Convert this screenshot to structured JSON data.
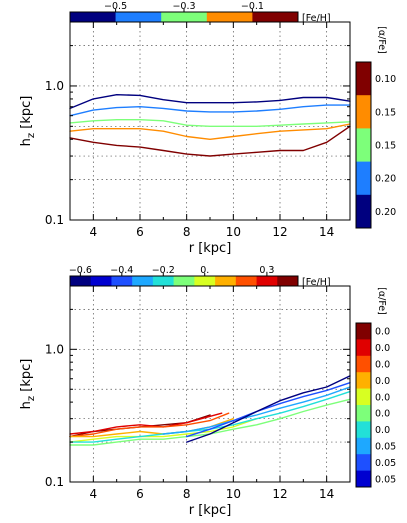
{
  "chart_data": [
    {
      "type": "line",
      "xlabel": "r [kpc]",
      "ylabel": "h_z [kpc]",
      "ylabel_main": "h",
      "ylabel_sub": "z",
      "ylabel_unit": " [kpc]",
      "xlim": [
        3,
        15
      ],
      "ylim": [
        0.1,
        3.0
      ],
      "yscale": "log",
      "xticks": [
        4,
        6,
        8,
        10,
        12,
        14
      ],
      "xtick_labels": [
        "4",
        "6",
        "8",
        "10",
        "12",
        "14"
      ],
      "yticks": [
        0.1,
        1.0
      ],
      "ytick_labels": [
        "0.1",
        "1.0"
      ],
      "grid": true,
      "top_colorbar": {
        "label": "[Fe/H]",
        "colors": [
          "#00007f",
          "#1e7eff",
          "#7dff7a",
          "#ff8c00",
          "#800000"
        ],
        "tick_labels": [
          "−0.5",
          "−0.3",
          "−0.1"
        ],
        "tick_positions": [
          1,
          2.5,
          4
        ]
      },
      "side_colorbar": {
        "label": "[α/Fe]",
        "colors": [
          "#800000",
          "#ff8c00",
          "#7dff7a",
          "#1e7eff",
          "#00007f"
        ],
        "tick_labels": [
          "0.10",
          "0.15",
          "0.15",
          "0.20",
          "0.20"
        ]
      },
      "series": [
        {
          "color": "#00007f",
          "x": [
            3,
            4,
            5,
            6,
            7,
            8,
            9,
            10,
            11,
            12,
            13,
            14,
            15
          ],
          "y": [
            0.68,
            0.8,
            0.86,
            0.85,
            0.79,
            0.75,
            0.75,
            0.75,
            0.76,
            0.78,
            0.82,
            0.82,
            0.77
          ]
        },
        {
          "color": "#1e7eff",
          "x": [
            3,
            4,
            5,
            6,
            7,
            8,
            9,
            10,
            11,
            12,
            13,
            14,
            15
          ],
          "y": [
            0.6,
            0.66,
            0.69,
            0.7,
            0.68,
            0.65,
            0.64,
            0.64,
            0.65,
            0.67,
            0.7,
            0.72,
            0.72
          ]
        },
        {
          "color": "#7dff7a",
          "x": [
            3,
            4,
            5,
            6,
            7,
            8,
            9,
            10,
            11,
            12,
            13,
            14,
            15
          ],
          "y": [
            0.53,
            0.55,
            0.56,
            0.56,
            0.55,
            0.51,
            0.5,
            0.5,
            0.5,
            0.51,
            0.52,
            0.53,
            0.54
          ]
        },
        {
          "color": "#ff8c00",
          "x": [
            3,
            4,
            5,
            6,
            7,
            8,
            9,
            10,
            11,
            12,
            13,
            14,
            15
          ],
          "y": [
            0.46,
            0.48,
            0.48,
            0.48,
            0.46,
            0.42,
            0.4,
            0.42,
            0.44,
            0.46,
            0.47,
            0.48,
            0.52
          ]
        },
        {
          "color": "#800000",
          "x": [
            3,
            4,
            5,
            6,
            7,
            8,
            9,
            10,
            11,
            12,
            13,
            14,
            15
          ],
          "y": [
            0.41,
            0.38,
            0.36,
            0.35,
            0.33,
            0.31,
            0.3,
            0.31,
            0.32,
            0.33,
            0.33,
            0.38,
            0.5
          ]
        }
      ]
    },
    {
      "type": "line",
      "xlabel": "r [kpc]",
      "ylabel": "h_z [kpc]",
      "ylabel_main": "h",
      "ylabel_sub": "z",
      "ylabel_unit": " [kpc]",
      "xlim": [
        3,
        15
      ],
      "ylim": [
        0.1,
        3.0
      ],
      "yscale": "log",
      "xticks": [
        4,
        6,
        8,
        10,
        12,
        14
      ],
      "xtick_labels": [
        "4",
        "6",
        "8",
        "10",
        "12",
        "14"
      ],
      "yticks": [
        0.1,
        1.0
      ],
      "ytick_labels": [
        "0.1",
        "1.0"
      ],
      "grid": true,
      "top_colorbar": {
        "label": "[Fe/H]",
        "colors": [
          "#00007f",
          "#0000d0",
          "#1e50ff",
          "#1ea8ff",
          "#22e0d8",
          "#7dff7a",
          "#d8ff22",
          "#ffb000",
          "#ff5000",
          "#e00000",
          "#800000"
        ],
        "tick_labels": [
          "−0.6",
          "−0.4",
          "−0.2",
          "0.",
          "0.3"
        ],
        "tick_positions": [
          0.5,
          2.5,
          4.5,
          6.5,
          9.5
        ]
      },
      "side_colorbar": {
        "label": "[α/Fe]",
        "colors": [
          "#800000",
          "#e00000",
          "#ff5000",
          "#ffb000",
          "#d8ff22",
          "#7dff7a",
          "#22e0d8",
          "#1ea8ff",
          "#1e50ff",
          "#0000d0"
        ],
        "tick_labels": [
          "0.0",
          "0.0",
          "0.0",
          "0.0",
          "0.0",
          "0.0",
          "0.0",
          "0.05",
          "0.05",
          "0.05"
        ]
      },
      "series": [
        {
          "color": "#800000",
          "x": [
            3,
            4,
            5,
            6,
            7,
            8,
            9
          ],
          "y": [
            0.22,
            0.24,
            0.25,
            0.26,
            0.27,
            0.28,
            0.32
          ]
        },
        {
          "color": "#e00000",
          "x": [
            3,
            4,
            5,
            6,
            7,
            8,
            9.5
          ],
          "y": [
            0.23,
            0.24,
            0.26,
            0.27,
            0.26,
            0.28,
            0.33
          ]
        },
        {
          "color": "#ff5000",
          "x": [
            3,
            4,
            5,
            6,
            7,
            8,
            9,
            9.8
          ],
          "y": [
            0.22,
            0.23,
            0.25,
            0.26,
            0.26,
            0.27,
            0.29,
            0.33
          ]
        },
        {
          "color": "#ffb000",
          "x": [
            3,
            4,
            5,
            6,
            7,
            8,
            9,
            10
          ],
          "y": [
            0.22,
            0.22,
            0.23,
            0.24,
            0.23,
            0.24,
            0.26,
            0.3
          ]
        },
        {
          "color": "#d8ff22",
          "x": [
            3,
            4,
            5,
            6,
            7,
            8,
            9,
            10,
            11
          ],
          "y": [
            0.2,
            0.21,
            0.22,
            0.22,
            0.22,
            0.23,
            0.24,
            0.26,
            0.3
          ]
        },
        {
          "color": "#7dff7a",
          "x": [
            3,
            4,
            5,
            6,
            7,
            8,
            9,
            10,
            11,
            12,
            13,
            14,
            15
          ],
          "y": [
            0.19,
            0.19,
            0.2,
            0.21,
            0.21,
            0.22,
            0.23,
            0.25,
            0.27,
            0.3,
            0.34,
            0.38,
            0.42
          ]
        },
        {
          "color": "#22e0d8",
          "x": [
            3,
            4,
            5,
            6,
            7,
            8,
            9,
            10,
            11,
            12,
            13,
            14,
            15
          ],
          "y": [
            0.2,
            0.2,
            0.21,
            0.22,
            0.23,
            0.24,
            0.25,
            0.27,
            0.3,
            0.33,
            0.37,
            0.42,
            0.48
          ]
        },
        {
          "color": "#1ea8ff",
          "x": [
            7,
            8,
            9,
            10,
            11,
            12,
            13,
            14,
            15
          ],
          "y": [
            0.23,
            0.24,
            0.26,
            0.29,
            0.32,
            0.36,
            0.4,
            0.45,
            0.52
          ]
        },
        {
          "color": "#1e50ff",
          "x": [
            8,
            9,
            10,
            11,
            12,
            13,
            14,
            15
          ],
          "y": [
            0.22,
            0.25,
            0.29,
            0.34,
            0.39,
            0.44,
            0.49,
            0.56
          ]
        },
        {
          "color": "#00007f",
          "x": [
            8,
            9,
            10,
            11,
            12,
            13,
            14,
            15
          ],
          "y": [
            0.2,
            0.23,
            0.28,
            0.34,
            0.41,
            0.47,
            0.52,
            0.63
          ]
        }
      ]
    }
  ]
}
